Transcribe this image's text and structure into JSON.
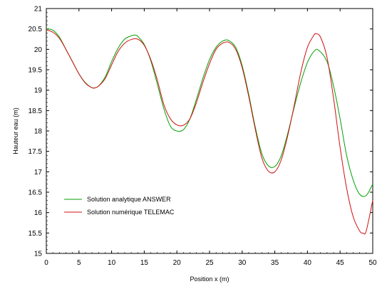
{
  "chart_data": {
    "type": "line",
    "title": "",
    "xlabel": "Position x (m)",
    "ylabel": "Hauteur eau (m)",
    "xlim": [
      0,
      50
    ],
    "ylim": [
      15,
      21
    ],
    "x_ticks": [
      "0",
      "5",
      "10",
      "15",
      "20",
      "25",
      "30",
      "35",
      "40",
      "45",
      "50"
    ],
    "y_ticks": [
      "15",
      "15.5",
      "16",
      "16.5",
      "17",
      "17.5",
      "18",
      "18.5",
      "19",
      "19.5",
      "20",
      "20.5",
      "21"
    ],
    "grid": false,
    "legend_position": "lower-left",
    "series": [
      {
        "name": "Solution analytique ANSWER",
        "color": "#00a000",
        "x": [
          0,
          1,
          2,
          3,
          4,
          5,
          6,
          7,
          7.5,
          8,
          9,
          10,
          11,
          12,
          13,
          13.6,
          14,
          15,
          16,
          17,
          18,
          19,
          20,
          21,
          22,
          23,
          24,
          25,
          26,
          27,
          27.9,
          29,
          30,
          31,
          32,
          33,
          34,
          35,
          36,
          37,
          38,
          39,
          40,
          41,
          41.7,
          43,
          44,
          45,
          46,
          47,
          48,
          49,
          50
        ],
        "values": [
          20.5,
          20.47,
          20.3,
          20.0,
          19.7,
          19.4,
          19.18,
          19.06,
          19.06,
          19.1,
          19.32,
          19.7,
          20.03,
          20.25,
          20.33,
          20.35,
          20.32,
          20.12,
          19.72,
          19.15,
          18.55,
          18.12,
          18.0,
          18.03,
          18.3,
          18.78,
          19.3,
          19.75,
          20.05,
          20.2,
          20.22,
          20.05,
          19.6,
          18.9,
          18.1,
          17.45,
          17.15,
          17.13,
          17.4,
          17.95,
          18.6,
          19.2,
          19.68,
          19.95,
          19.98,
          19.7,
          19.1,
          18.3,
          17.4,
          16.8,
          16.45,
          16.42,
          16.7
        ]
      },
      {
        "name": "Solution numérique TELEMAC",
        "color": "#d01010",
        "x": [
          0,
          1,
          2,
          3,
          4,
          5,
          6,
          7,
          7.5,
          8,
          9,
          10,
          11,
          12,
          13,
          14,
          15,
          16,
          17,
          18,
          19,
          20,
          21,
          22,
          23,
          24,
          25,
          26,
          27,
          28,
          29,
          30,
          31,
          32,
          33,
          34,
          35,
          36,
          37,
          38,
          39,
          40,
          41,
          41.3,
          42,
          43,
          44,
          45,
          46,
          47,
          48,
          48.5,
          49,
          50
        ],
        "values": [
          20.48,
          20.42,
          20.27,
          20.0,
          19.7,
          19.4,
          19.17,
          19.06,
          19.06,
          19.1,
          19.28,
          19.62,
          19.95,
          20.15,
          20.24,
          20.25,
          20.1,
          19.75,
          19.25,
          18.65,
          18.3,
          18.15,
          18.14,
          18.3,
          18.7,
          19.2,
          19.65,
          20.0,
          20.15,
          20.17,
          20.0,
          19.55,
          18.85,
          18.05,
          17.35,
          17.02,
          17.0,
          17.3,
          17.9,
          18.65,
          19.45,
          20.05,
          20.35,
          20.38,
          20.3,
          19.8,
          18.8,
          17.6,
          16.6,
          15.9,
          15.55,
          15.5,
          15.55,
          16.3
        ]
      }
    ]
  }
}
